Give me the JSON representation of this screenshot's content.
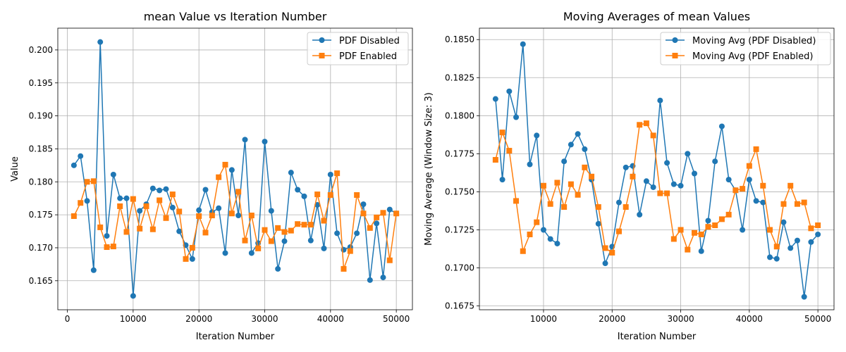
{
  "colors": {
    "series_disabled": "#1f77b4",
    "series_enabled": "#ff7f0e",
    "grid": "#b0b0b0",
    "axes": "#000000"
  },
  "chart_data": [
    {
      "type": "line",
      "title": "mean Value vs Iteration Number",
      "xlabel": "Iteration Number",
      "ylabel": "Value",
      "xlim": [
        -1450,
        52450
      ],
      "ylim": [
        0.1606,
        0.2033
      ],
      "xticks": [
        0,
        10000,
        20000,
        30000,
        40000,
        50000
      ],
      "xtick_labels": [
        "0",
        "10000",
        "20000",
        "30000",
        "40000",
        "50000"
      ],
      "yticks": [
        0.165,
        0.17,
        0.175,
        0.18,
        0.185,
        0.19,
        0.195,
        0.2
      ],
      "ytick_labels": [
        "0.165",
        "0.170",
        "0.175",
        "0.180",
        "0.185",
        "0.190",
        "0.195",
        "0.200"
      ],
      "grid": true,
      "legend_position": "top-right",
      "x": [
        1000,
        2000,
        3000,
        4000,
        5000,
        6000,
        7000,
        8000,
        9000,
        10000,
        11000,
        12000,
        13000,
        14000,
        15000,
        16000,
        17000,
        18000,
        19000,
        20000,
        21000,
        22000,
        23000,
        24000,
        25000,
        26000,
        27000,
        28000,
        29000,
        30000,
        31000,
        32000,
        33000,
        34000,
        35000,
        36000,
        37000,
        38000,
        39000,
        40000,
        41000,
        42000,
        43000,
        44000,
        45000,
        46000,
        47000,
        48000,
        49000,
        50000
      ],
      "series": [
        {
          "name": "PDF Disabled",
          "color": "#1f77b4",
          "marker": "circle",
          "values": [
            0.1825,
            0.1839,
            0.1771,
            0.1666,
            0.2012,
            0.1718,
            0.1811,
            0.1775,
            0.1775,
            0.1627,
            0.1756,
            0.1766,
            0.179,
            0.1787,
            0.1789,
            0.1761,
            0.1725,
            0.1704,
            0.1683,
            0.1757,
            0.1788,
            0.1754,
            0.176,
            0.1692,
            0.1818,
            0.1749,
            0.1864,
            0.1692,
            0.1707,
            0.1861,
            0.1756,
            0.1668,
            0.171,
            0.1814,
            0.1788,
            0.1778,
            0.1711,
            0.1765,
            0.1699,
            0.1811,
            0.1722,
            0.1697,
            0.1701,
            0.1722,
            0.1766,
            0.1651,
            0.1737,
            0.1655,
            0.1758,
            0.1752
          ]
        },
        {
          "name": "PDF Enabled",
          "color": "#ff7f0e",
          "marker": "square",
          "values": [
            0.1748,
            0.1768,
            0.18,
            0.1801,
            0.1731,
            0.1701,
            0.1702,
            0.1763,
            0.1724,
            0.1774,
            0.1729,
            0.1763,
            0.1728,
            0.1772,
            0.1745,
            0.1781,
            0.1755,
            0.1683,
            0.17,
            0.1748,
            0.1723,
            0.1749,
            0.1807,
            0.1826,
            0.1752,
            0.1785,
            0.1711,
            0.1749,
            0.1699,
            0.1727,
            0.171,
            0.173,
            0.1724,
            0.1726,
            0.1736,
            0.1735,
            0.1735,
            0.1781,
            0.1741,
            0.178,
            0.1813,
            0.1668,
            0.1695,
            0.178,
            0.1752,
            0.173,
            0.1746,
            0.1753,
            0.1681,
            0.1752
          ]
        }
      ]
    },
    {
      "type": "line",
      "title": "Moving Averages of mean Values",
      "xlabel": "Iteration Number",
      "ylabel": "Moving Average (Window Size: 3)",
      "xlim": [
        650,
        52350
      ],
      "ylim": [
        0.16725,
        0.18575
      ],
      "xticks": [
        10000,
        20000,
        30000,
        40000,
        50000
      ],
      "xtick_labels": [
        "10000",
        "20000",
        "30000",
        "40000",
        "50000"
      ],
      "yticks": [
        0.1675,
        0.17,
        0.1725,
        0.175,
        0.1775,
        0.18,
        0.1825,
        0.185
      ],
      "ytick_labels": [
        "0.1675",
        "0.1700",
        "0.1725",
        "0.1750",
        "0.1775",
        "0.1800",
        "0.1825",
        "0.1850"
      ],
      "grid": true,
      "legend_position": "top-right",
      "x": [
        3000,
        4000,
        5000,
        6000,
        7000,
        8000,
        9000,
        10000,
        11000,
        12000,
        13000,
        14000,
        15000,
        16000,
        17000,
        18000,
        19000,
        20000,
        21000,
        22000,
        23000,
        24000,
        25000,
        26000,
        27000,
        28000,
        29000,
        30000,
        31000,
        32000,
        33000,
        34000,
        35000,
        36000,
        37000,
        38000,
        39000,
        40000,
        41000,
        42000,
        43000,
        44000,
        45000,
        46000,
        47000,
        48000,
        49000,
        50000
      ],
      "series": [
        {
          "name": "Moving Avg (PDF Disabled)",
          "color": "#1f77b4",
          "marker": "circle",
          "values": [
            0.1811,
            0.1758,
            0.1816,
            0.1799,
            0.1847,
            0.1768,
            0.1787,
            0.1725,
            0.1719,
            0.1716,
            0.177,
            0.1781,
            0.1788,
            0.1778,
            0.1758,
            0.1729,
            0.1703,
            0.1714,
            0.1743,
            0.1766,
            0.1767,
            0.1735,
            0.1757,
            0.1753,
            0.181,
            0.1769,
            0.1755,
            0.1754,
            0.1775,
            0.1762,
            0.1711,
            0.1731,
            0.177,
            0.1793,
            0.1758,
            0.1751,
            0.1725,
            0.1758,
            0.1744,
            0.1743,
            0.1707,
            0.1706,
            0.173,
            0.1713,
            0.1718,
            0.1681,
            0.1717,
            0.1722
          ]
        },
        {
          "name": "Moving Avg (PDF Enabled)",
          "color": "#ff7f0e",
          "marker": "square",
          "values": [
            0.1771,
            0.1789,
            0.1777,
            0.1744,
            0.1711,
            0.1722,
            0.173,
            0.1754,
            0.1742,
            0.1756,
            0.174,
            0.1755,
            0.1748,
            0.1766,
            0.176,
            0.174,
            0.1713,
            0.171,
            0.1724,
            0.174,
            0.176,
            0.1794,
            0.1795,
            0.1787,
            0.1749,
            0.1749,
            0.1719,
            0.1725,
            0.1712,
            0.1723,
            0.1722,
            0.1727,
            0.1728,
            0.1732,
            0.1735,
            0.1751,
            0.1752,
            0.1767,
            0.1778,
            0.1754,
            0.1725,
            0.1714,
            0.1742,
            0.1754,
            0.1742,
            0.1743,
            0.1726,
            0.1728
          ]
        }
      ]
    }
  ]
}
